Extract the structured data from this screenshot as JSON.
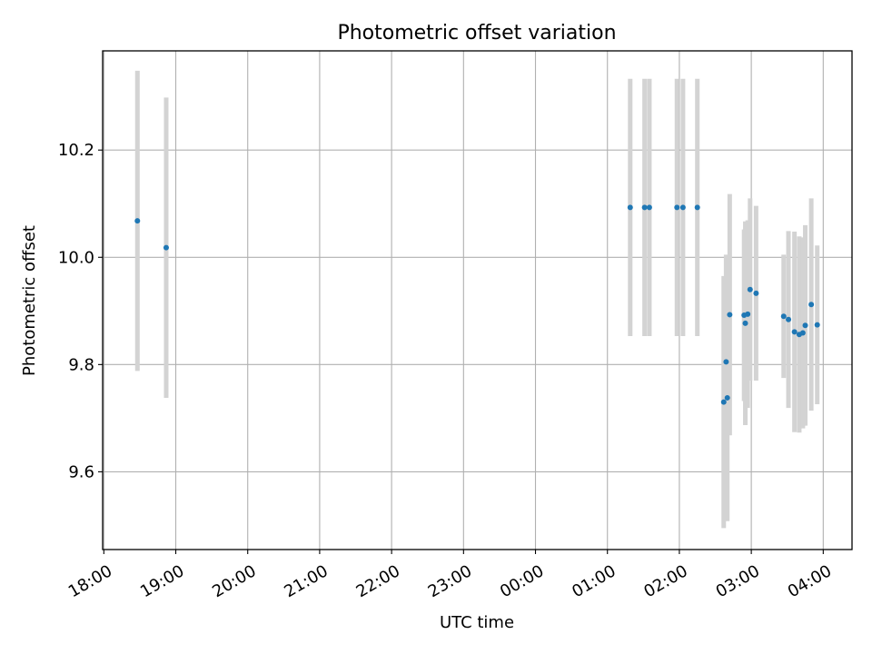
{
  "chart_data": {
    "type": "scatter",
    "title": "Photometric offset variation",
    "xlabel": "UTC time",
    "ylabel": "Photometric offset",
    "x_axis": {
      "kind": "time",
      "xlim": [
        "17:59",
        "04:24"
      ],
      "ticks": [
        "18:00",
        "19:00",
        "20:00",
        "21:00",
        "22:00",
        "23:00",
        "00:00",
        "01:00",
        "02:00",
        "03:00",
        "04:00"
      ]
    },
    "y_axis": {
      "ylim": [
        9.455,
        10.385
      ],
      "ticks": [
        9.6,
        9.8,
        10.0,
        10.2
      ],
      "tick_labels": [
        "9.6",
        "9.8",
        "10.0",
        "10.2"
      ]
    },
    "grid": true,
    "colors": {
      "point": "#1f77b4",
      "errorbar": "#d3d3d3",
      "grid": "#b0b0b0"
    },
    "series": [
      {
        "points": [
          {
            "x": "18:28",
            "y": 10.068,
            "yerr": 0.28
          },
          {
            "x": "18:52",
            "y": 10.018,
            "yerr": 0.28
          },
          {
            "x": "01:19",
            "y": 10.093,
            "yerr": 0.24
          },
          {
            "x": "01:31",
            "y": 10.093,
            "yerr": 0.24
          },
          {
            "x": "01:35",
            "y": 10.093,
            "yerr": 0.24
          },
          {
            "x": "01:58",
            "y": 10.093,
            "yerr": 0.24
          },
          {
            "x": "02:03",
            "y": 10.093,
            "yerr": 0.24
          },
          {
            "x": "02:15",
            "y": 10.093,
            "yerr": 0.24
          },
          {
            "x": "02:37",
            "y": 9.73,
            "yerr": 0.235
          },
          {
            "x": "02:39",
            "y": 9.805,
            "yerr": 0.2
          },
          {
            "x": "02:40",
            "y": 9.738,
            "yerr": 0.23
          },
          {
            "x": "02:42",
            "y": 9.893,
            "yerr": 0.225
          },
          {
            "x": "02:54",
            "y": 9.892,
            "yerr": 0.16
          },
          {
            "x": "02:55",
            "y": 9.877,
            "yerr": 0.19
          },
          {
            "x": "02:57",
            "y": 9.894,
            "yerr": 0.175
          },
          {
            "x": "02:59",
            "y": 9.94,
            "yerr": 0.17
          },
          {
            "x": "03:04",
            "y": 9.933,
            "yerr": 0.163
          },
          {
            "x": "03:27",
            "y": 9.89,
            "yerr": 0.115
          },
          {
            "x": "03:31",
            "y": 9.884,
            "yerr": 0.165
          },
          {
            "x": "03:36",
            "y": 9.861,
            "yerr": 0.187
          },
          {
            "x": "03:40",
            "y": 9.856,
            "yerr": 0.183
          },
          {
            "x": "03:43",
            "y": 9.859,
            "yerr": 0.178
          },
          {
            "x": "03:45",
            "y": 9.873,
            "yerr": 0.187
          },
          {
            "x": "03:50",
            "y": 9.912,
            "yerr": 0.198
          },
          {
            "x": "03:55",
            "y": 9.874,
            "yerr": 0.148
          }
        ]
      }
    ]
  }
}
